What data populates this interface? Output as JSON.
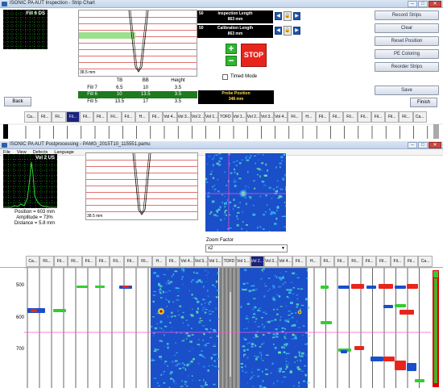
{
  "window1": {
    "title": "ISONIC PA AUT Inspection - Strip Chart",
    "scope_label": "Fill 6 DS",
    "scale_label": "38.5 mm",
    "table": {
      "headers": [
        "",
        "TB",
        "BB",
        "Height"
      ],
      "rows": [
        {
          "name": "Fill 7",
          "tb": "6.5",
          "bb": "10",
          "height": "3.5"
        },
        {
          "name": "Fill 6",
          "tb": "10",
          "bb": "13.5",
          "height": "3.5"
        },
        {
          "name": "Fill 5",
          "tb": "13.5",
          "bb": "17",
          "height": "3.5"
        }
      ]
    },
    "inspection": {
      "num": "50",
      "caption": "Inspection Length",
      "value": "863 mm"
    },
    "calibration": {
      "num": "50",
      "caption": "Calibration Length",
      "value": "863 mm"
    },
    "stop_label": "STOP",
    "timed_mode_label": "Timed Mode",
    "probe_position": {
      "caption": "Probe Position",
      "value": "348 mm"
    },
    "buttons": {
      "record": "Record Strips",
      "clear": "Clear",
      "reset": "Reset Position",
      "pe": "PE Coloring",
      "reorder": "Reorder Strips",
      "save": "Save",
      "finish": "Finish",
      "back": "Back"
    },
    "strip_tabs": [
      "Ca...",
      "Fil...",
      "Fil...",
      "Fil...",
      "Fil...",
      "Fil...",
      "Fil...",
      "Fil...",
      "H...",
      "Fil...",
      "Vol 4...",
      "Vol 3...",
      "Vol 2...",
      "Vol 1...",
      "TOFD",
      "Vol 1...",
      "Vol 2...",
      "Vol 3...",
      "Vol 4...",
      "Fil...",
      "H...",
      "Fil...",
      "Fil...",
      "Fil...",
      "Fil...",
      "Fil...",
      "Fil...",
      "Fil...",
      "Ca..."
    ],
    "active_tab_index": 3
  },
  "window2": {
    "title": "ISONIC PA AUT Postprocessing - PAMG_2015T10_115551.pamu",
    "menu": [
      "File",
      "View",
      "Defects",
      "Language"
    ],
    "scope_label": "Vol 2 US",
    "position": "Position = 603 mm",
    "amplitude": "Amplitude = 73%",
    "distance": "Distance = 5.8 mm",
    "scale_label": "38.5 mm",
    "zoom_label": "Zoom Factor",
    "zoom_value": "x2",
    "strip_tabs": [
      "Ca...",
      "Fil...",
      "Fil...",
      "Fil...",
      "Fil...",
      "Fil...",
      "Fil...",
      "Fil...",
      "Fil...",
      "H...",
      "Fil...",
      "Vol 4...",
      "Vol 3...",
      "Vol 1...",
      "TOFD",
      "Vol 1...",
      "Vol 2...",
      "Vol 3...",
      "Vol 4...",
      "Fil...",
      "H...",
      "Fil...",
      "Fil...",
      "Fil...",
      "Fil...",
      "Fil...",
      "Fil...",
      "Fil...",
      "Ca..."
    ],
    "active_tab_index": 16,
    "y_ticks": [
      "500",
      "600",
      "700"
    ]
  },
  "colors": {
    "accent_blue": "#1a237e",
    "stop_red": "#e8251d",
    "table_green": "#1f7a1f",
    "scope_green": "#2fdc2f"
  }
}
